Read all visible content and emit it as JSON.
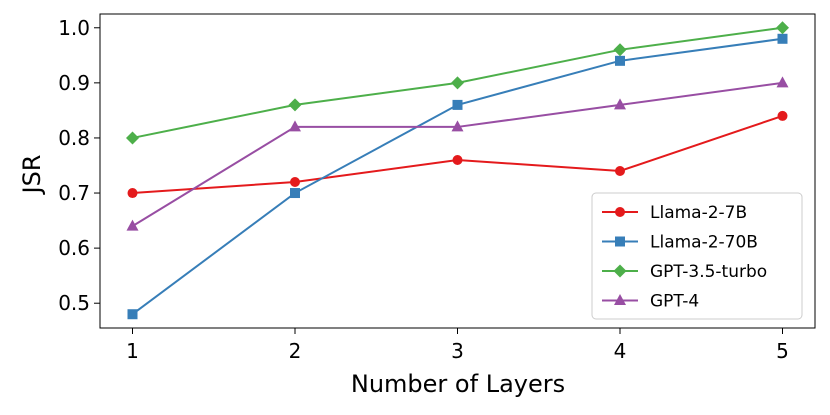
{
  "chart_data": {
    "type": "line",
    "title": "",
    "xlabel": "Number of Layers",
    "ylabel": "JSR",
    "x": [
      1,
      2,
      3,
      4,
      5
    ],
    "xticks": [
      "1",
      "2",
      "3",
      "4",
      "5"
    ],
    "yticks": [
      "0.5",
      "0.6",
      "0.7",
      "0.8",
      "0.9",
      "1.0"
    ],
    "xlim": [
      0.8,
      5.2
    ],
    "ylim": [
      0.455,
      1.025
    ],
    "grid": false,
    "legend_position": "bottom-right",
    "series": [
      {
        "name": "Llama-2-7B",
        "color": "#e41a1c",
        "marker": "circle",
        "values": [
          0.7,
          0.72,
          0.76,
          0.74,
          0.84
        ]
      },
      {
        "name": "Llama-2-70B",
        "color": "#377eb8",
        "marker": "square",
        "values": [
          0.48,
          0.7,
          0.86,
          0.94,
          0.98
        ]
      },
      {
        "name": "GPT-3.5-turbo",
        "color": "#4daf4a",
        "marker": "diamond",
        "values": [
          0.8,
          0.86,
          0.9,
          0.96,
          1.0
        ]
      },
      {
        "name": "GPT-4",
        "color": "#984ea3",
        "marker": "triangle",
        "values": [
          0.64,
          0.82,
          0.82,
          0.86,
          0.9
        ]
      }
    ]
  }
}
